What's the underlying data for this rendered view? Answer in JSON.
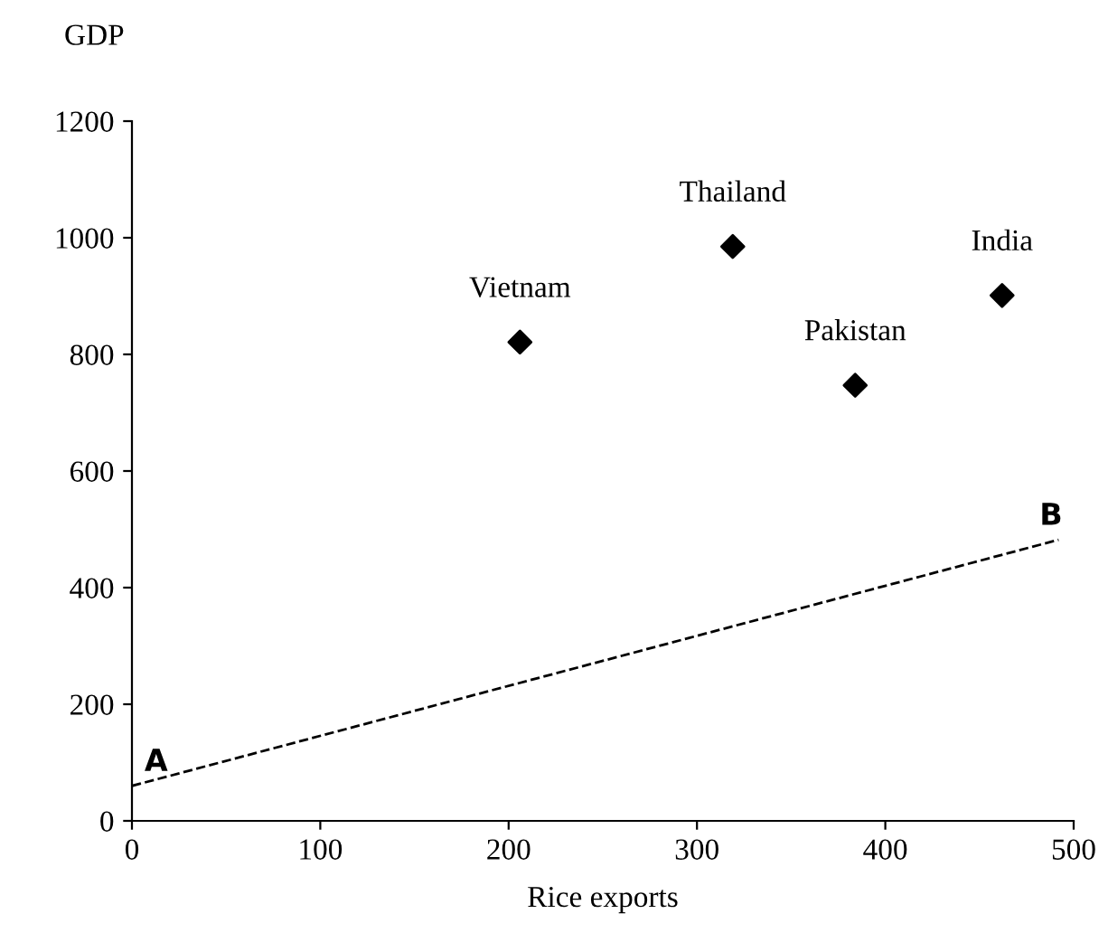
{
  "chart_data": {
    "type": "scatter",
    "xlabel": "Rice exports",
    "ylabel": "GDP",
    "xlim": [
      0,
      500
    ],
    "xticks": [
      0,
      100,
      200,
      300,
      400,
      500
    ],
    "ylim": [
      0,
      1200
    ],
    "yticks": [
      0,
      200,
      400,
      600,
      800,
      1000,
      1200
    ],
    "grid": false,
    "legend": false,
    "series": [
      {
        "color": "#000000",
        "marker": "diamond",
        "x": [
          206,
          319,
          384,
          462
        ],
        "values": [
          821,
          985,
          747,
          901
        ]
      },
      {
        "type": "line",
        "color": "#000000",
        "line_style": "dashed",
        "marker": "none",
        "x": [
          0,
          492
        ],
        "values": [
          60,
          482
        ]
      }
    ],
    "annotations": [
      {
        "text": "Vietnam",
        "x": 206,
        "y": 821
      },
      {
        "text": "Thailand",
        "x": 319,
        "y": 985
      },
      {
        "text": "Pakistan",
        "x": 384,
        "y": 747
      },
      {
        "text": "India",
        "x": 462,
        "y": 901
      },
      {
        "text": "A",
        "x": 0,
        "y": 60
      },
      {
        "text": "B",
        "x": 492,
        "y": 482
      }
    ]
  }
}
